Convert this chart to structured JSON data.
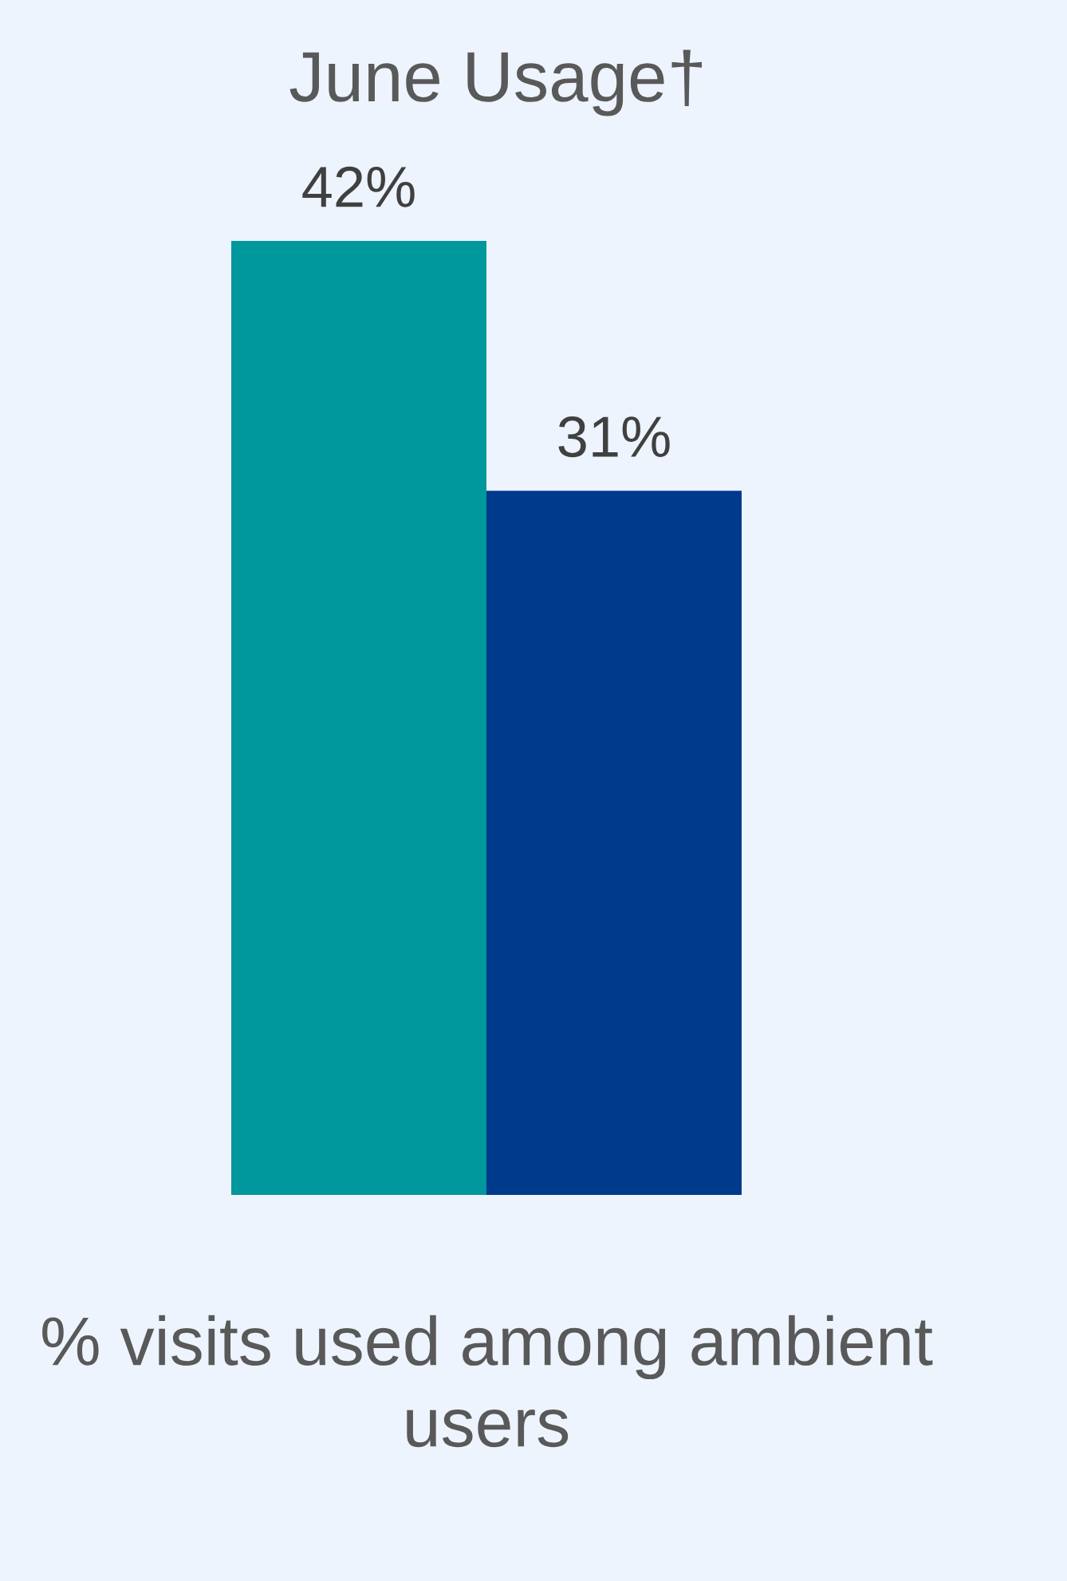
{
  "chart_data": {
    "type": "bar",
    "title": "June Usage†",
    "xlabel": "% visits used among ambient users",
    "categories": [
      null,
      null
    ],
    "values": [
      42,
      31
    ],
    "colors": [
      "#00979d",
      "#003a8c"
    ],
    "value_labels": [
      "42%",
      "31%"
    ],
    "grid": false
  }
}
